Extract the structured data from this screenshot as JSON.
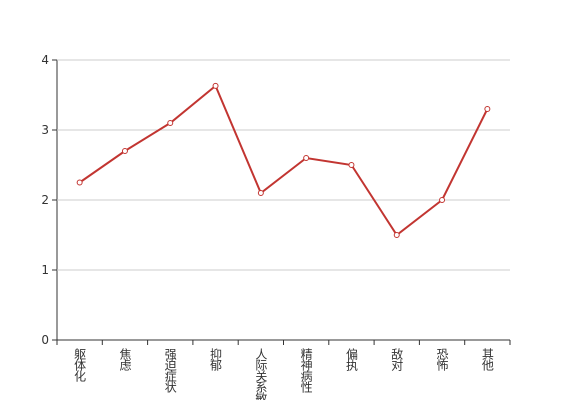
{
  "chart_data": {
    "type": "line",
    "categories": [
      "躯体化",
      "焦虑",
      "强迫症状",
      "抑郁",
      "人际关系敏感",
      "精神病性",
      "偏执",
      "敌对",
      "恐怖",
      "其他"
    ],
    "values": [
      2.25,
      2.7,
      3.1,
      3.63,
      2.1,
      2.6,
      2.5,
      1.5,
      2.0,
      3.3
    ],
    "color": "#c23531",
    "ylim": [
      0,
      4
    ],
    "yticks": [
      0,
      1,
      2,
      3,
      4
    ],
    "grid": true
  }
}
